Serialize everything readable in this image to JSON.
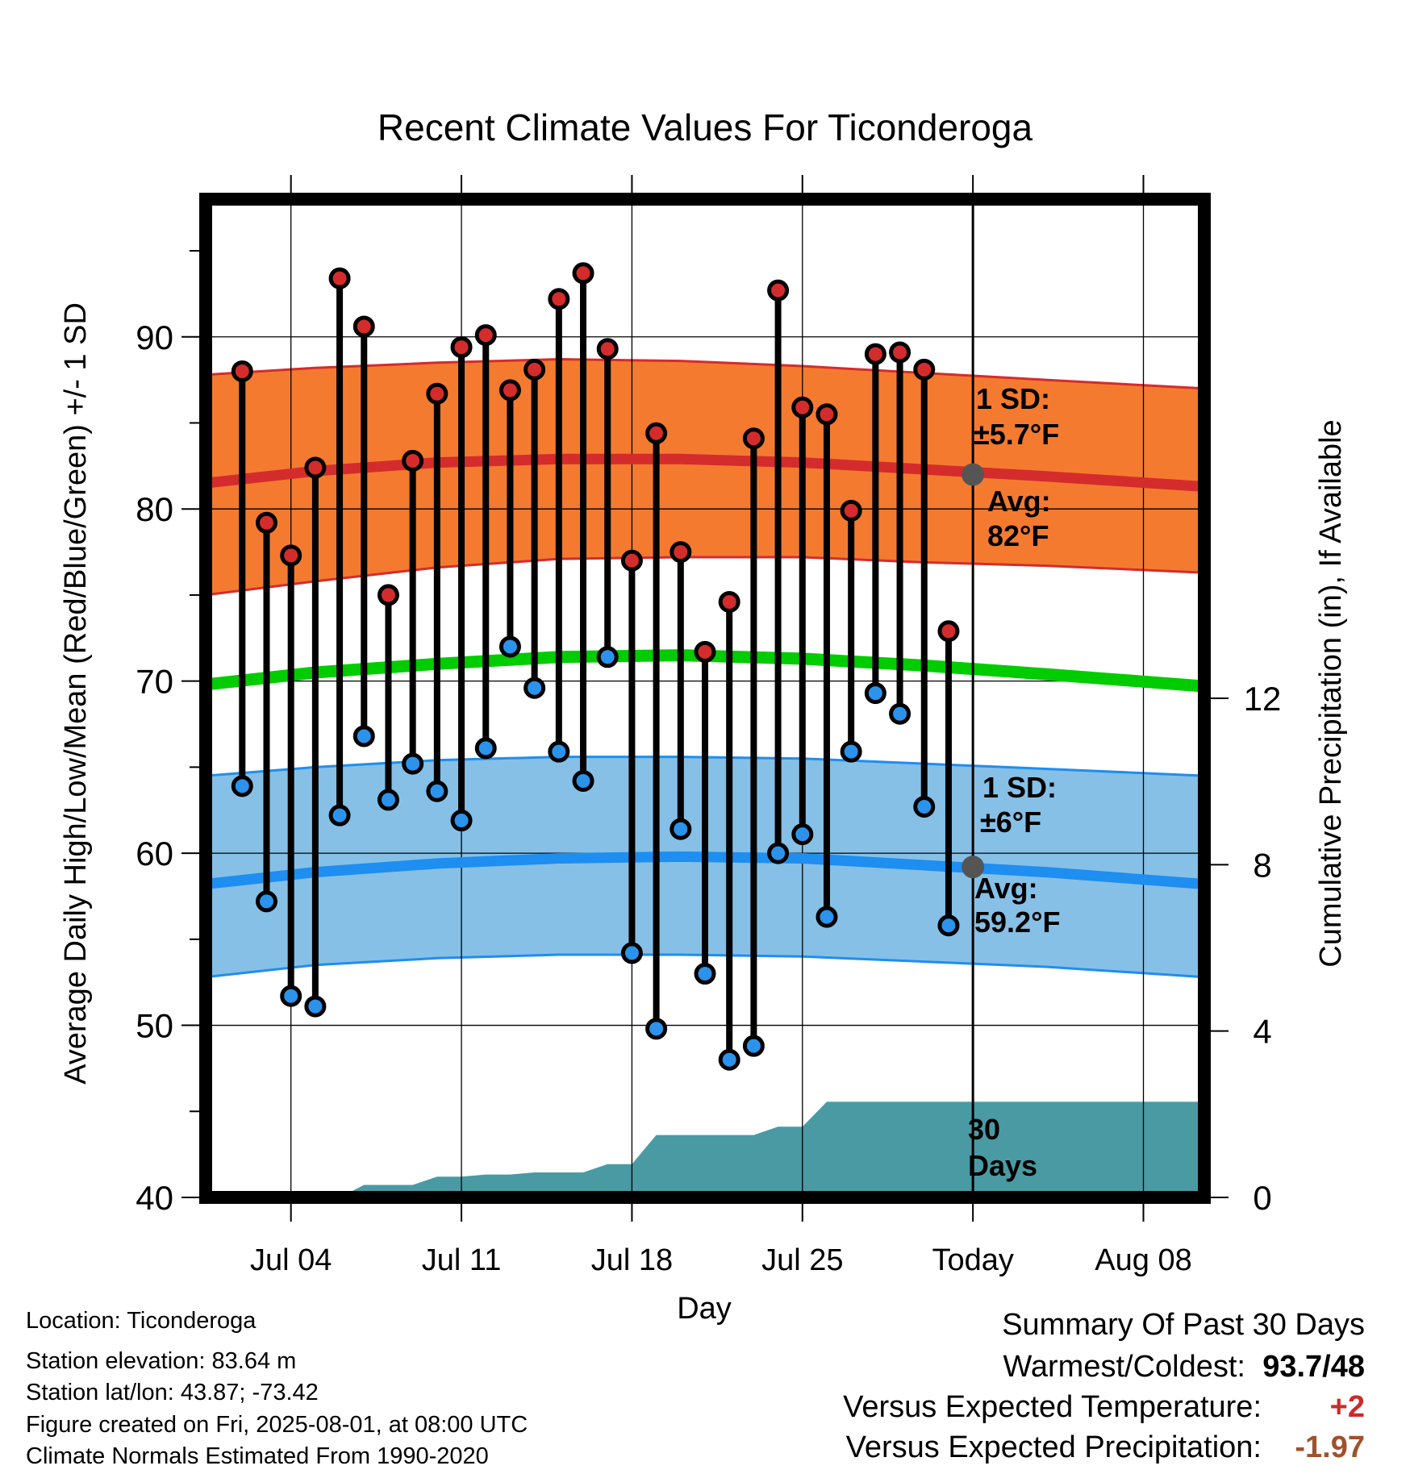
{
  "chart_data": {
    "type": "line",
    "title": "Recent Climate Values For Ticonderoga",
    "xlabel": "Day",
    "ylabel": "Average Daily High/Low/Mean (Red/Blue/Green) +/- 1 SD",
    "y2label": "Cumulative Precipitation (in), If Available",
    "ylim": [
      40,
      98
    ],
    "y2lim": [
      0,
      24
    ],
    "yticks": [
      40,
      50,
      60,
      70,
      80,
      90
    ],
    "y2ticks": [
      0,
      4,
      8,
      12
    ],
    "xlim": [
      30.5,
      71.5
    ],
    "xticks": [
      {
        "x": 34,
        "label": "Jul 04"
      },
      {
        "x": 41,
        "label": "Jul 11"
      },
      {
        "x": 48,
        "label": "Jul 18"
      },
      {
        "x": 55,
        "label": "Jul 25"
      },
      {
        "x": 62,
        "label": "Today"
      },
      {
        "x": 69,
        "label": "Aug 08"
      }
    ],
    "today_x": 62,
    "normals_x": [
      30.5,
      35,
      40,
      45,
      50,
      55,
      60,
      65,
      71.5
    ],
    "normal_high": [
      81.5,
      82.2,
      82.7,
      82.9,
      82.9,
      82.7,
      82.3,
      81.9,
      81.3
    ],
    "normal_high_upper": [
      87.8,
      88.2,
      88.5,
      88.7,
      88.6,
      88.3,
      87.9,
      87.5,
      87.0
    ],
    "normal_high_lower": [
      75.0,
      75.8,
      76.6,
      77.1,
      77.2,
      77.2,
      76.9,
      76.7,
      76.3
    ],
    "normal_mean": [
      69.8,
      70.5,
      71.0,
      71.4,
      71.5,
      71.3,
      70.9,
      70.4,
      69.7
    ],
    "normal_low": [
      58.2,
      58.9,
      59.4,
      59.7,
      59.8,
      59.7,
      59.3,
      58.9,
      58.2
    ],
    "normal_low_upper": [
      64.5,
      65.0,
      65.4,
      65.6,
      65.6,
      65.5,
      65.2,
      64.9,
      64.5
    ],
    "normal_low_lower": [
      52.8,
      53.5,
      53.9,
      54.1,
      54.1,
      54.0,
      53.7,
      53.4,
      52.8
    ],
    "series": [
      {
        "name": "High",
        "x": [
          32,
          33,
          34,
          35,
          36,
          37,
          38,
          39,
          40,
          41,
          42,
          43,
          44,
          45,
          46,
          47,
          48,
          49,
          50,
          51,
          52,
          53,
          54,
          55,
          56,
          57,
          58,
          59,
          60,
          61
        ],
        "values": [
          88,
          79.2,
          77.3,
          82.4,
          93.4,
          90.6,
          75,
          82.8,
          86.7,
          89.4,
          90.1,
          86.9,
          88.1,
          92.2,
          93.7,
          89.3,
          77,
          84.4,
          77.5,
          71.7,
          74.6,
          84.1,
          92.7,
          85.9,
          85.5,
          79.9,
          89,
          89.1,
          88.1,
          72.9
        ]
      },
      {
        "name": "Low",
        "x": [
          32,
          33,
          34,
          35,
          36,
          37,
          38,
          39,
          40,
          41,
          42,
          43,
          44,
          45,
          46,
          47,
          48,
          49,
          50,
          51,
          52,
          53,
          54,
          55,
          56,
          57,
          58,
          59,
          60,
          61
        ],
        "values": [
          63.9,
          57.2,
          51.7,
          51.1,
          62.2,
          66.8,
          63.1,
          65.2,
          63.6,
          61.9,
          66.1,
          72,
          69.6,
          65.9,
          64.2,
          71.4,
          54.2,
          49.8,
          61.4,
          53,
          48,
          48.8,
          60,
          61.1,
          56.3,
          65.9,
          69.3,
          68.1,
          62.7,
          55.8
        ]
      },
      {
        "name": "Cumulative Precipitation",
        "x": [
          30.5,
          33,
          35,
          36,
          37,
          38,
          39,
          40,
          41,
          42,
          43,
          44,
          45,
          46,
          47,
          48,
          49,
          50,
          51,
          52,
          53,
          54,
          55,
          56,
          57,
          58,
          62,
          71.5
        ],
        "values": [
          0,
          0,
          0,
          0,
          0.3,
          0.3,
          0.3,
          0.5,
          0.5,
          0.55,
          0.55,
          0.6,
          0.6,
          0.6,
          0.8,
          0.8,
          1.5,
          1.5,
          1.5,
          1.5,
          1.5,
          1.7,
          1.7,
          2.3,
          2.3,
          2.3,
          2.3,
          2.3
        ]
      }
    ],
    "annotations": {
      "high_sd_label1": "1 SD:",
      "high_sd_label2": "±5.7°F",
      "high_avg_label1": "Avg:",
      "high_avg_label2": "82°F",
      "low_sd_label1": "1 SD:",
      "low_sd_label2": "±6°F",
      "low_avg_label1": "Avg:",
      "low_avg_label2": "59.2°F",
      "period_label1": "30",
      "period_label2": "Days",
      "today_high_avg": 82,
      "today_low_avg": 59.2
    },
    "grid": true,
    "colors": {
      "high_band": "#f47a30",
      "high_line": "#d42c2c",
      "mean_line": "#00cc00",
      "low_band": "#86c0e6",
      "low_line": "#1e8ef0",
      "precip": "#4a9aa4",
      "high_dot": "#d42c2c",
      "low_dot": "#2b93ec",
      "annot": "#555555"
    }
  },
  "info": {
    "location": "Location: Ticonderoga",
    "elevation": "Station elevation: 83.64 m",
    "latlon": "Station lat/lon: 43.87; -73.42",
    "created": "Figure created on Fri, 2025-08-01, at 08:00 UTC",
    "normals": "Climate Normals Estimated From 1990-2020"
  },
  "summary": {
    "title": "Summary Of Past 30 Days",
    "warmest_label": "Warmest/Coldest:",
    "warmest_value": "93.7/48",
    "temp_label": "Versus Expected Temperature:",
    "temp_value": "+2",
    "temp_color": "#cc2a2a",
    "precip_label": "Versus Expected Precipitation:",
    "precip_value": "-1.97",
    "precip_color": "#a0522d"
  }
}
